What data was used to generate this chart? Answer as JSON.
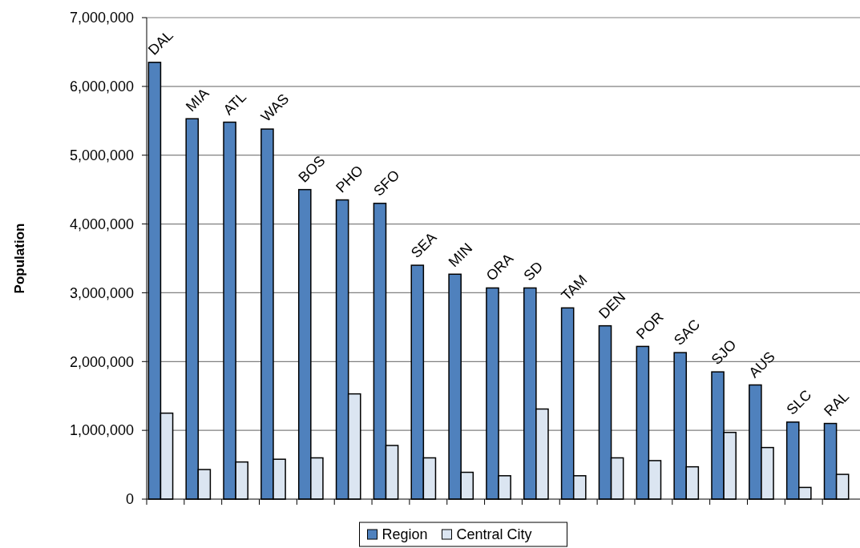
{
  "chart_data": {
    "type": "bar",
    "ylabel": "Population",
    "categories": [
      "DAL",
      "MIA",
      "ATL",
      "WAS",
      "BOS",
      "PHO",
      "SFO",
      "SEA",
      "MIN",
      "ORA",
      "SD",
      "TAM",
      "DEN",
      "POR",
      "SAC",
      "SJO",
      "AUS",
      "SLC",
      "RAL"
    ],
    "series": [
      {
        "name": "Region",
        "color": "#4f81bd",
        "values": [
          6350000,
          5530000,
          5480000,
          5380000,
          4500000,
          4350000,
          4300000,
          3400000,
          3270000,
          3070000,
          3070000,
          2780000,
          2520000,
          2220000,
          2130000,
          1850000,
          1660000,
          1120000,
          1100000
        ]
      },
      {
        "name": "Central City",
        "color": "#dbe5f1",
        "values": [
          1250000,
          430000,
          540000,
          580000,
          600000,
          1530000,
          780000,
          600000,
          390000,
          340000,
          1310000,
          340000,
          600000,
          560000,
          470000,
          970000,
          750000,
          170000,
          360000
        ]
      }
    ],
    "ylim": [
      0,
      7000000
    ],
    "yticks": [
      {
        "value": 0,
        "label": "0"
      },
      {
        "value": 1000000,
        "label": "1,000,000"
      },
      {
        "value": 2000000,
        "label": "2,000,000"
      },
      {
        "value": 3000000,
        "label": "3,000,000"
      },
      {
        "value": 4000000,
        "label": "4,000,000"
      },
      {
        "value": 5000000,
        "label": "5,000,000"
      },
      {
        "value": 6000000,
        "label": "6,000,000"
      },
      {
        "value": 7000000,
        "label": "7,000,000"
      }
    ],
    "grid": "y",
    "legend": "bottom"
  }
}
